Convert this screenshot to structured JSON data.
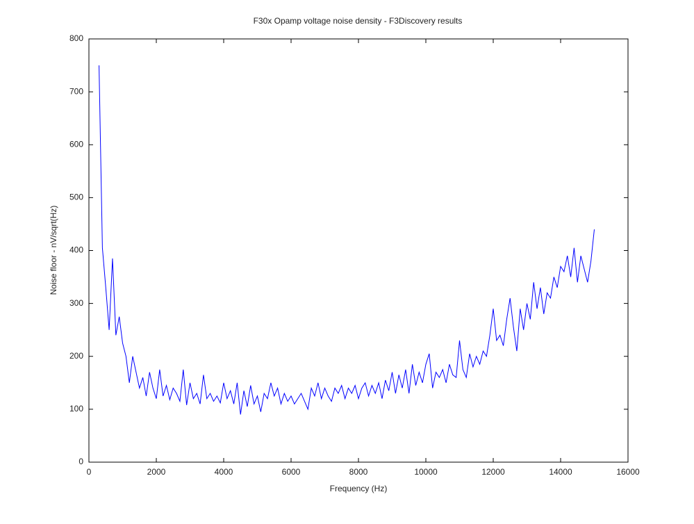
{
  "chart_data": {
    "type": "line",
    "title": "F30x Opamp voltage noise density - F3Discovery results",
    "x_label": "Frequency (Hz)",
    "y_label": "Noise floor - nV/sqrt(Hz)",
    "xlim": [
      0,
      16000
    ],
    "xticks": [
      0,
      2000,
      4000,
      6000,
      8000,
      10000,
      12000,
      14000,
      16000
    ],
    "ylim": [
      0,
      800
    ],
    "yticks": [
      0,
      100,
      200,
      300,
      400,
      500,
      600,
      700,
      800
    ],
    "grid": false,
    "series": [
      {
        "color": "#0000ff",
        "x": [
          300,
          400,
          500,
          600,
          700,
          800,
          900,
          1000,
          1100,
          1200,
          1300,
          1400,
          1500,
          1600,
          1700,
          1800,
          1900,
          2000,
          2100,
          2200,
          2300,
          2400,
          2500,
          2600,
          2700,
          2800,
          2900,
          3000,
          3100,
          3200,
          3300,
          3400,
          3500,
          3600,
          3700,
          3800,
          3900,
          4000,
          4100,
          4200,
          4300,
          4400,
          4500,
          4600,
          4700,
          4800,
          4900,
          5000,
          5100,
          5200,
          5300,
          5400,
          5500,
          5600,
          5700,
          5800,
          5900,
          6000,
          6100,
          6200,
          6300,
          6400,
          6500,
          6600,
          6700,
          6800,
          6900,
          7000,
          7100,
          7200,
          7300,
          7400,
          7500,
          7600,
          7700,
          7800,
          7900,
          8000,
          8100,
          8200,
          8300,
          8400,
          8500,
          8600,
          8700,
          8800,
          8900,
          9000,
          9100,
          9200,
          9300,
          9400,
          9500,
          9600,
          9700,
          9800,
          9900,
          10000,
          10100,
          10200,
          10300,
          10400,
          10500,
          10600,
          10700,
          10800,
          10900,
          11000,
          11100,
          11200,
          11300,
          11400,
          11500,
          11600,
          11700,
          11800,
          11900,
          12000,
          12100,
          12200,
          12300,
          12400,
          12500,
          12600,
          12700,
          12800,
          12900,
          13000,
          13100,
          13200,
          13300,
          13400,
          13500,
          13600,
          13700,
          13800,
          13900,
          14000,
          14100,
          14200,
          14300,
          14400,
          14500,
          14600,
          14700,
          14800,
          14900,
          15000
        ],
        "values": [
          750,
          405,
          330,
          250,
          385,
          240,
          275,
          225,
          200,
          150,
          200,
          170,
          140,
          160,
          125,
          170,
          140,
          120,
          175,
          125,
          145,
          118,
          140,
          130,
          115,
          175,
          108,
          150,
          120,
          130,
          110,
          165,
          120,
          130,
          115,
          125,
          112,
          150,
          120,
          135,
          110,
          150,
          90,
          135,
          105,
          145,
          110,
          125,
          95,
          130,
          120,
          150,
          125,
          140,
          110,
          130,
          115,
          125,
          110,
          120,
          130,
          115,
          100,
          140,
          125,
          150,
          120,
          140,
          125,
          115,
          140,
          130,
          145,
          120,
          140,
          130,
          145,
          120,
          140,
          150,
          125,
          145,
          130,
          150,
          120,
          155,
          135,
          170,
          130,
          165,
          140,
          175,
          130,
          185,
          145,
          170,
          150,
          185,
          205,
          140,
          170,
          160,
          175,
          150,
          185,
          165,
          160,
          230,
          175,
          160,
          205,
          180,
          200,
          185,
          210,
          200,
          240,
          290,
          230,
          240,
          220,
          270,
          310,
          255,
          210,
          290,
          250,
          300,
          270,
          340,
          290,
          330,
          280,
          320,
          310,
          350,
          330,
          370,
          360,
          390,
          350,
          405,
          340,
          390,
          365,
          340,
          380,
          440
        ]
      }
    ]
  }
}
